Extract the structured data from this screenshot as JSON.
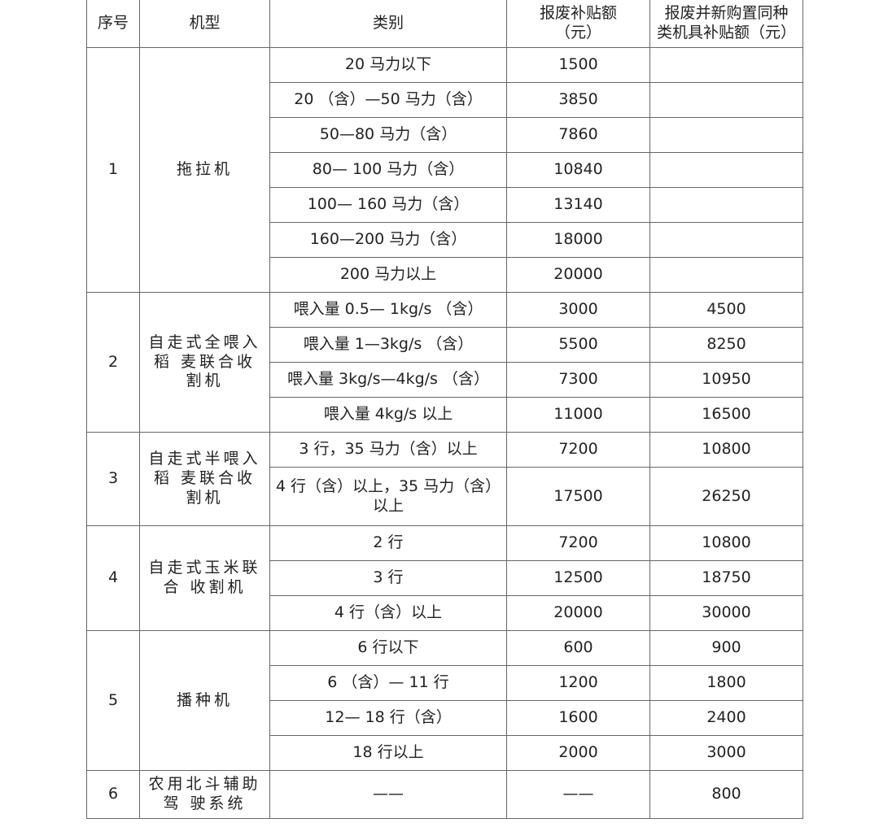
{
  "table": {
    "header": [
      "序号",
      "机型",
      "类别",
      "报废补贴额\n（元）",
      "报废并新购置同种\n类机具补贴额（元）"
    ],
    "groups": [
      {
        "no": 1,
        "model": "拖拉机",
        "rows": [
          {
            "category": "20 马力以下",
            "scrap": 1500
          },
          {
            "category": "20 （含）—50 马力（含）",
            "scrap": 3850
          },
          {
            "category": "50—80 马力（含）",
            "scrap": 7860
          },
          {
            "category": "80— 100 马力（含）",
            "scrap": 10840
          },
          {
            "category": "100— 160 马力（含）",
            "scrap": 13140
          },
          {
            "category": "160—200 马力（含）",
            "scrap": 18000
          },
          {
            "category": "200 马力以上",
            "scrap": 20000
          }
        ]
      },
      {
        "no": 2,
        "model": "自走式全喂入\n稻 麦联合收\n割机",
        "rows": [
          {
            "category": "喂入量 0.5— 1kg/s （含）",
            "scrap": 3000,
            "new": 4500
          },
          {
            "category": "喂入量 1—3kg/s （含）",
            "scrap": 5500,
            "new": 8250
          },
          {
            "category": "喂入量 3kg/s—4kg/s （含）",
            "scrap": 7300,
            "new": 10950
          },
          {
            "category": "喂入量 4kg/s 以上",
            "scrap": 11000,
            "new": 16500
          }
        ]
      },
      {
        "no": 3,
        "model": "自走式半喂入\n稻 麦联合收\n割机",
        "rows": [
          {
            "category": "3 行，35 马力（含）以上",
            "scrap": 7200,
            "new": 10800
          },
          {
            "category": "4 行（含）以上，35 马力（含）\n以上",
            "scrap": 17500,
            "new": 26250
          }
        ]
      },
      {
        "no": 4,
        "model": "自走式玉米联\n合 收割机",
        "rows": [
          {
            "category": "2 行",
            "scrap": 7200,
            "new": 10800
          },
          {
            "category": "3 行",
            "scrap": 12500,
            "new": 18750
          },
          {
            "category": "4 行（含）以上",
            "scrap": 20000,
            "new": 30000
          }
        ]
      },
      {
        "no": 5,
        "model": "播种机",
        "rows": [
          {
            "category": "6 行以下",
            "scrap": 600,
            "new": 900
          },
          {
            "category": "6 （含）— 11 行",
            "scrap": 1200,
            "new": 1800
          },
          {
            "category": "12— 18 行（含）",
            "scrap": 1600,
            "new": 2400
          },
          {
            "category": "18 行以上",
            "scrap": 2000,
            "new": 3000
          }
        ]
      },
      {
        "no": 6,
        "model": "农用北斗辅助\n驾 驶系统",
        "rows": [
          {
            "category": "——",
            "scrap": "——",
            "new": 800
          }
        ]
      }
    ]
  }
}
